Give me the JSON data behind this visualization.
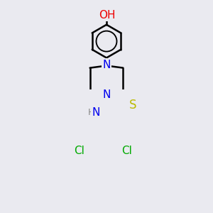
{
  "bg_color": "#eaeaf0",
  "bond_color": "#000000",
  "bond_width": 1.8,
  "atom_colors": {
    "N": "#0000ee",
    "O": "#ee0000",
    "S": "#bbbb00",
    "Cl": "#00aa00",
    "H": "#888888",
    "C": "#000000"
  },
  "font_size": 10,
  "figsize": [
    3.0,
    3.0
  ],
  "dpi": 100,
  "oh_color": "#ee0000",
  "h_color": "#888888"
}
